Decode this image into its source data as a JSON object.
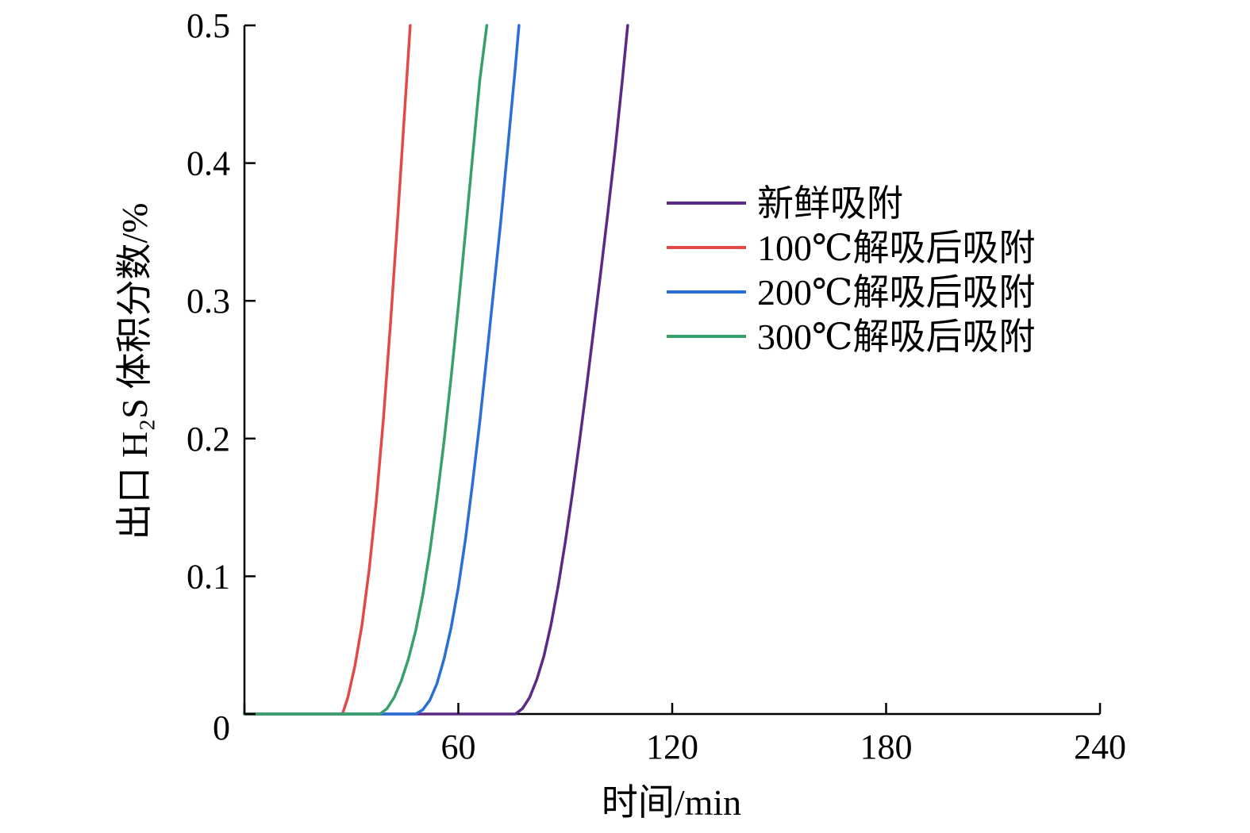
{
  "chart_data": {
    "type": "line",
    "title": "",
    "xlabel": "时间/min",
    "ylabel": "出口 H₂S 体积分数/%",
    "xlim": [
      0,
      240
    ],
    "ylim": [
      0,
      0.5
    ],
    "x_ticks": [
      0,
      60,
      120,
      180,
      240
    ],
    "x_tick_labels": [
      "",
      "60",
      "120",
      "180",
      "240"
    ],
    "y_ticks": [
      0,
      0.1,
      0.2,
      0.3,
      0.4,
      0.5
    ],
    "y_tick_labels": [
      "0",
      "0.1",
      "0.2",
      "0.3",
      "0.4",
      "0.5"
    ],
    "grid": false,
    "legend_position": "right",
    "series": [
      {
        "name": "新鲜吸附",
        "color": "#5b2a86",
        "x": [
          0,
          76,
          78,
          80,
          82,
          84,
          86,
          88,
          90,
          92,
          94,
          96,
          98,
          100,
          102,
          104,
          106,
          107.5
        ],
        "y": [
          0,
          0,
          0.004,
          0.012,
          0.025,
          0.042,
          0.065,
          0.093,
          0.125,
          0.16,
          0.198,
          0.238,
          0.28,
          0.322,
          0.365,
          0.41,
          0.46,
          0.5
        ]
      },
      {
        "name": "100℃解吸后吸附",
        "color": "#e24a4a",
        "x": [
          0,
          27.5,
          29,
          31,
          33,
          35,
          37,
          39,
          41,
          43,
          45,
          46.5
        ],
        "y": [
          0,
          0,
          0.012,
          0.035,
          0.065,
          0.105,
          0.155,
          0.215,
          0.285,
          0.36,
          0.44,
          0.5
        ]
      },
      {
        "name": "200℃解吸后吸附",
        "color": "#2a6fd6",
        "x": [
          0,
          48,
          50,
          52,
          54,
          56,
          58,
          60,
          62,
          64,
          66,
          68,
          70,
          72,
          74,
          76,
          77
        ],
        "y": [
          0,
          0,
          0.003,
          0.01,
          0.022,
          0.04,
          0.063,
          0.092,
          0.127,
          0.168,
          0.212,
          0.26,
          0.31,
          0.36,
          0.415,
          0.47,
          0.5
        ]
      },
      {
        "name": "300℃解吸后吸附",
        "color": "#3aa06a",
        "x": [
          0,
          38,
          40,
          42,
          44,
          46,
          48,
          50,
          52,
          54,
          56,
          58,
          60,
          62,
          64,
          66,
          68
        ],
        "y": [
          0,
          0,
          0.004,
          0.012,
          0.024,
          0.04,
          0.06,
          0.086,
          0.118,
          0.156,
          0.198,
          0.245,
          0.296,
          0.35,
          0.405,
          0.46,
          0.5
        ]
      }
    ]
  }
}
